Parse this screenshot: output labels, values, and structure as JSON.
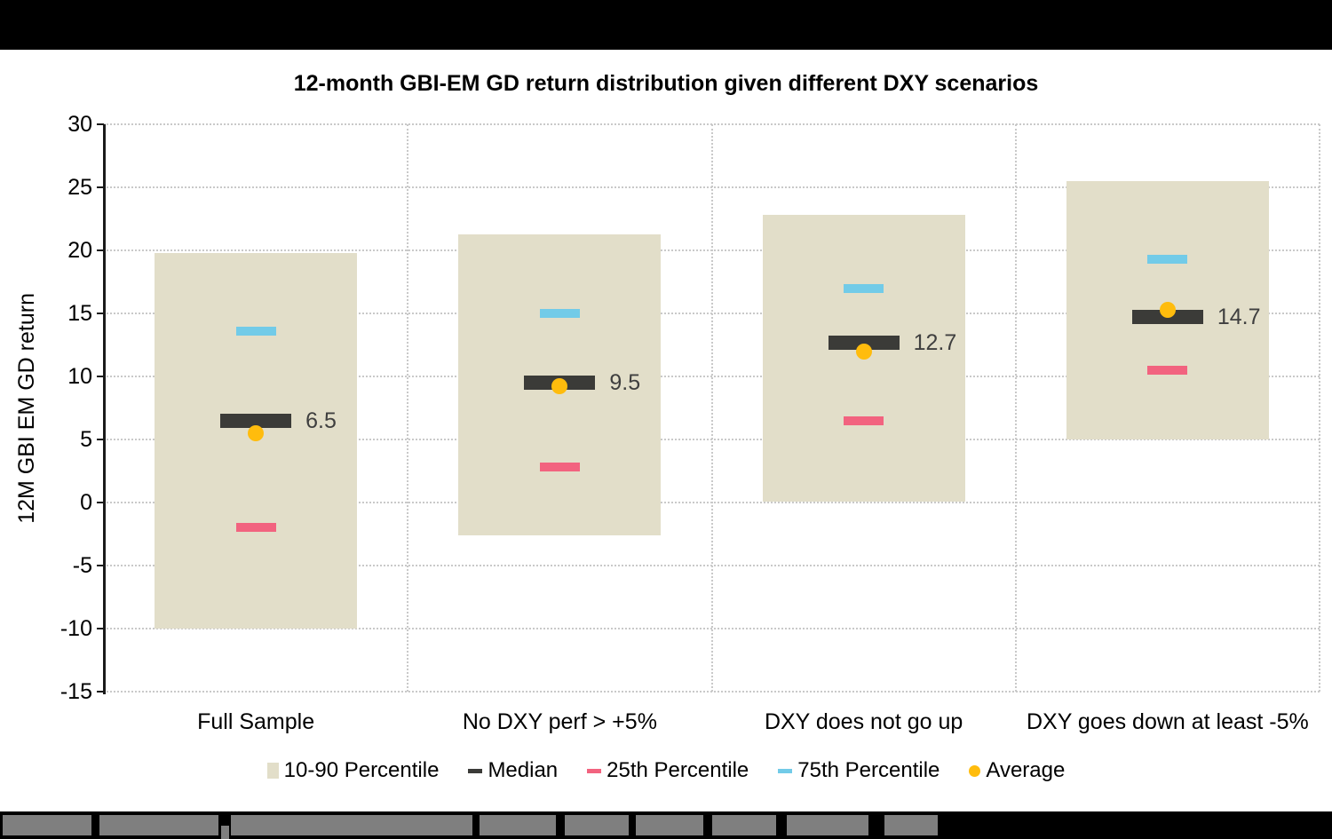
{
  "page": {
    "top_bar": {
      "type": "solid-black-redaction-bar"
    },
    "footer": {
      "type": "black-bar-with-gray-redacted-text-blocks"
    }
  },
  "chart_data": {
    "type": "box-percentile",
    "title": "12-month GBI-EM GD return distribution given different DXY scenarios",
    "xlabel": "",
    "ylabel": "12M GBI EM GD return",
    "ylim": [
      -15,
      30
    ],
    "ytick_step": 5,
    "grid": "dotted",
    "legend_position": "bottom",
    "categories": [
      "Full Sample",
      "No DXY perf > +5%",
      "DXY does not go up",
      "DXY goes down at least -5%"
    ],
    "series": [
      {
        "category": "Full Sample",
        "p10": -10.0,
        "p25": -2.0,
        "median": 6.5,
        "p75": 13.6,
        "p90": 19.8,
        "average": 5.5,
        "median_label": "6.5"
      },
      {
        "category": "No DXY perf > +5%",
        "p10": -2.6,
        "p25": 2.8,
        "median": 9.5,
        "p75": 15.0,
        "p90": 21.3,
        "average": 9.2,
        "median_label": "9.5"
      },
      {
        "category": "DXY does not go up",
        "p10": 0.1,
        "p25": 6.5,
        "median": 12.7,
        "p75": 17.0,
        "p90": 22.8,
        "average": 12.0,
        "median_label": "12.7"
      },
      {
        "category": "DXY goes down at least -5%",
        "p10": 5.0,
        "p25": 10.5,
        "median": 14.7,
        "p75": 19.3,
        "p90": 25.5,
        "average": 15.3,
        "median_label": "14.7"
      }
    ],
    "legend": [
      {
        "label": "10-90 Percentile",
        "swatch": "box"
      },
      {
        "label": "Median",
        "swatch": "dash-dark"
      },
      {
        "label": "25th Percentile",
        "swatch": "dash-pink"
      },
      {
        "label": "75th Percentile",
        "swatch": "dash-blue"
      },
      {
        "label": "Average",
        "swatch": "dot-yellow"
      }
    ],
    "colors": {
      "box": "#e2dec9",
      "median": "#3b3b38",
      "p25": "#f2637f",
      "p75": "#72cbe8",
      "average": "#ffbc0d",
      "grid": "#c9c9c9",
      "axis": "#1a1a1a",
      "value_label": "#3f3f3f",
      "title": "#000000",
      "bar_black": "#000000",
      "redaction_gray": "#7f7f7f"
    }
  }
}
